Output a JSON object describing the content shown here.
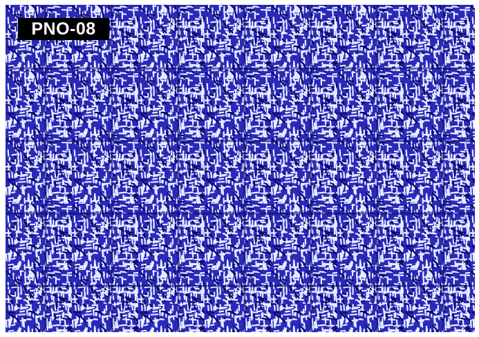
{
  "image": {
    "label": "PNO-08",
    "colors": {
      "background": "#ffffff",
      "pattern_base": "#2a2ab8",
      "pattern_dark": "#0a0a70",
      "pattern_light": "#e8ecff",
      "label_bg": "#000000",
      "label_text": "#ffffff"
    },
    "pattern_description_icon": "stereogram-texture-icon"
  }
}
